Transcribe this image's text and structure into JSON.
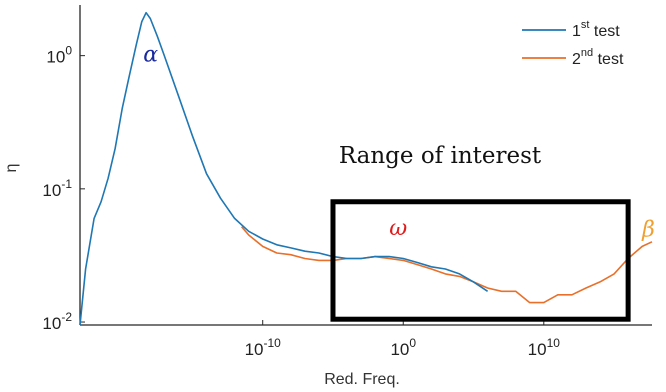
{
  "chart_data": {
    "type": "line",
    "xlabel": "Red. Freq.",
    "ylabel": "η",
    "x_scale": "log",
    "y_scale": "log",
    "xlim": [
      1e-23,
      5e+17
    ],
    "ylim": [
      0.0095,
      2.4
    ],
    "x_ticks": [
      {
        "value": 1e-10,
        "label_base": "10",
        "label_exp": "-10"
      },
      {
        "value": 1,
        "label_base": "10",
        "label_exp": "0"
      },
      {
        "value": 10000000000.0,
        "label_base": "10",
        "label_exp": "10"
      }
    ],
    "y_ticks": [
      {
        "value": 0.01,
        "label_base": "10",
        "label_exp": "-2"
      },
      {
        "value": 0.1,
        "label_base": "10",
        "label_exp": "-1"
      },
      {
        "value": 1,
        "label_base": "10",
        "label_exp": "0"
      }
    ],
    "grid": false,
    "legend_position": "top-right",
    "series": [
      {
        "name_base": "1",
        "name_sup": "st",
        "name_rest": " test",
        "color": "#1f77b4",
        "points": [
          [
            -23.0,
            0.0095
          ],
          [
            -22.6,
            0.025
          ],
          [
            -22.0,
            0.06
          ],
          [
            -21.5,
            0.08
          ],
          [
            -21.0,
            0.12
          ],
          [
            -20.5,
            0.2
          ],
          [
            -20.0,
            0.4
          ],
          [
            -19.5,
            0.7
          ],
          [
            -19.0,
            1.2
          ],
          [
            -18.6,
            1.8
          ],
          [
            -18.3,
            2.1
          ],
          [
            -18.0,
            1.9
          ],
          [
            -17.5,
            1.4
          ],
          [
            -17.0,
            1.0
          ],
          [
            -16.0,
            0.5
          ],
          [
            -15.0,
            0.25
          ],
          [
            -14.0,
            0.13
          ],
          [
            -13.0,
            0.085
          ],
          [
            -12.0,
            0.06
          ],
          [
            -11.0,
            0.048
          ],
          [
            -10.0,
            0.042
          ],
          [
            -9.0,
            0.038
          ],
          [
            -8.0,
            0.036
          ],
          [
            -7.0,
            0.034
          ],
          [
            -6.0,
            0.033
          ],
          [
            -5.0,
            0.031
          ],
          [
            -4.0,
            0.03
          ],
          [
            -3.0,
            0.03
          ],
          [
            -2.0,
            0.031
          ],
          [
            -1.0,
            0.031
          ],
          [
            0.0,
            0.03
          ],
          [
            1.0,
            0.028
          ],
          [
            2.0,
            0.026
          ],
          [
            3.0,
            0.025
          ],
          [
            4.0,
            0.023
          ],
          [
            5.0,
            0.02
          ],
          [
            6.0,
            0.017
          ]
        ]
      },
      {
        "name_base": "2",
        "name_sup": "nd",
        "name_rest": " test",
        "color": "#e8702a",
        "points": [
          [
            -11.5,
            0.052
          ],
          [
            -11.0,
            0.045
          ],
          [
            -10.0,
            0.037
          ],
          [
            -9.0,
            0.033
          ],
          [
            -8.0,
            0.032
          ],
          [
            -7.0,
            0.03
          ],
          [
            -6.0,
            0.029
          ],
          [
            -5.0,
            0.029
          ],
          [
            -4.0,
            0.03
          ],
          [
            -3.0,
            0.03
          ],
          [
            -2.0,
            0.031
          ],
          [
            -1.0,
            0.03
          ],
          [
            0.0,
            0.029
          ],
          [
            1.0,
            0.027
          ],
          [
            2.0,
            0.025
          ],
          [
            3.0,
            0.023
          ],
          [
            4.0,
            0.022
          ],
          [
            5.0,
            0.02
          ],
          [
            6.0,
            0.018
          ],
          [
            7.0,
            0.017
          ],
          [
            8.0,
            0.017
          ],
          [
            9.0,
            0.014
          ],
          [
            10.0,
            0.014
          ],
          [
            11.0,
            0.016
          ],
          [
            12.0,
            0.016
          ],
          [
            13.0,
            0.018
          ],
          [
            14.0,
            0.02
          ],
          [
            15.0,
            0.023
          ],
          [
            16.0,
            0.03
          ],
          [
            17.0,
            0.037
          ],
          [
            17.7,
            0.04
          ]
        ]
      }
    ],
    "annotations": {
      "range_label": "Range of interest",
      "range_box_x": [
        1e-05,
        1e+16
      ],
      "range_box_y": [
        0.0105,
        0.08
      ],
      "alpha": "α",
      "alpha_color": "#1a2aa0",
      "alpha_at": [
        -18.5,
        0.9
      ],
      "omega": "ω",
      "omega_color": "#e01b1b",
      "omega_at": [
        -1.0,
        0.045
      ],
      "beta": "β",
      "beta_color": "#f0a030",
      "beta_at": [
        17.0,
        0.044
      ]
    }
  }
}
